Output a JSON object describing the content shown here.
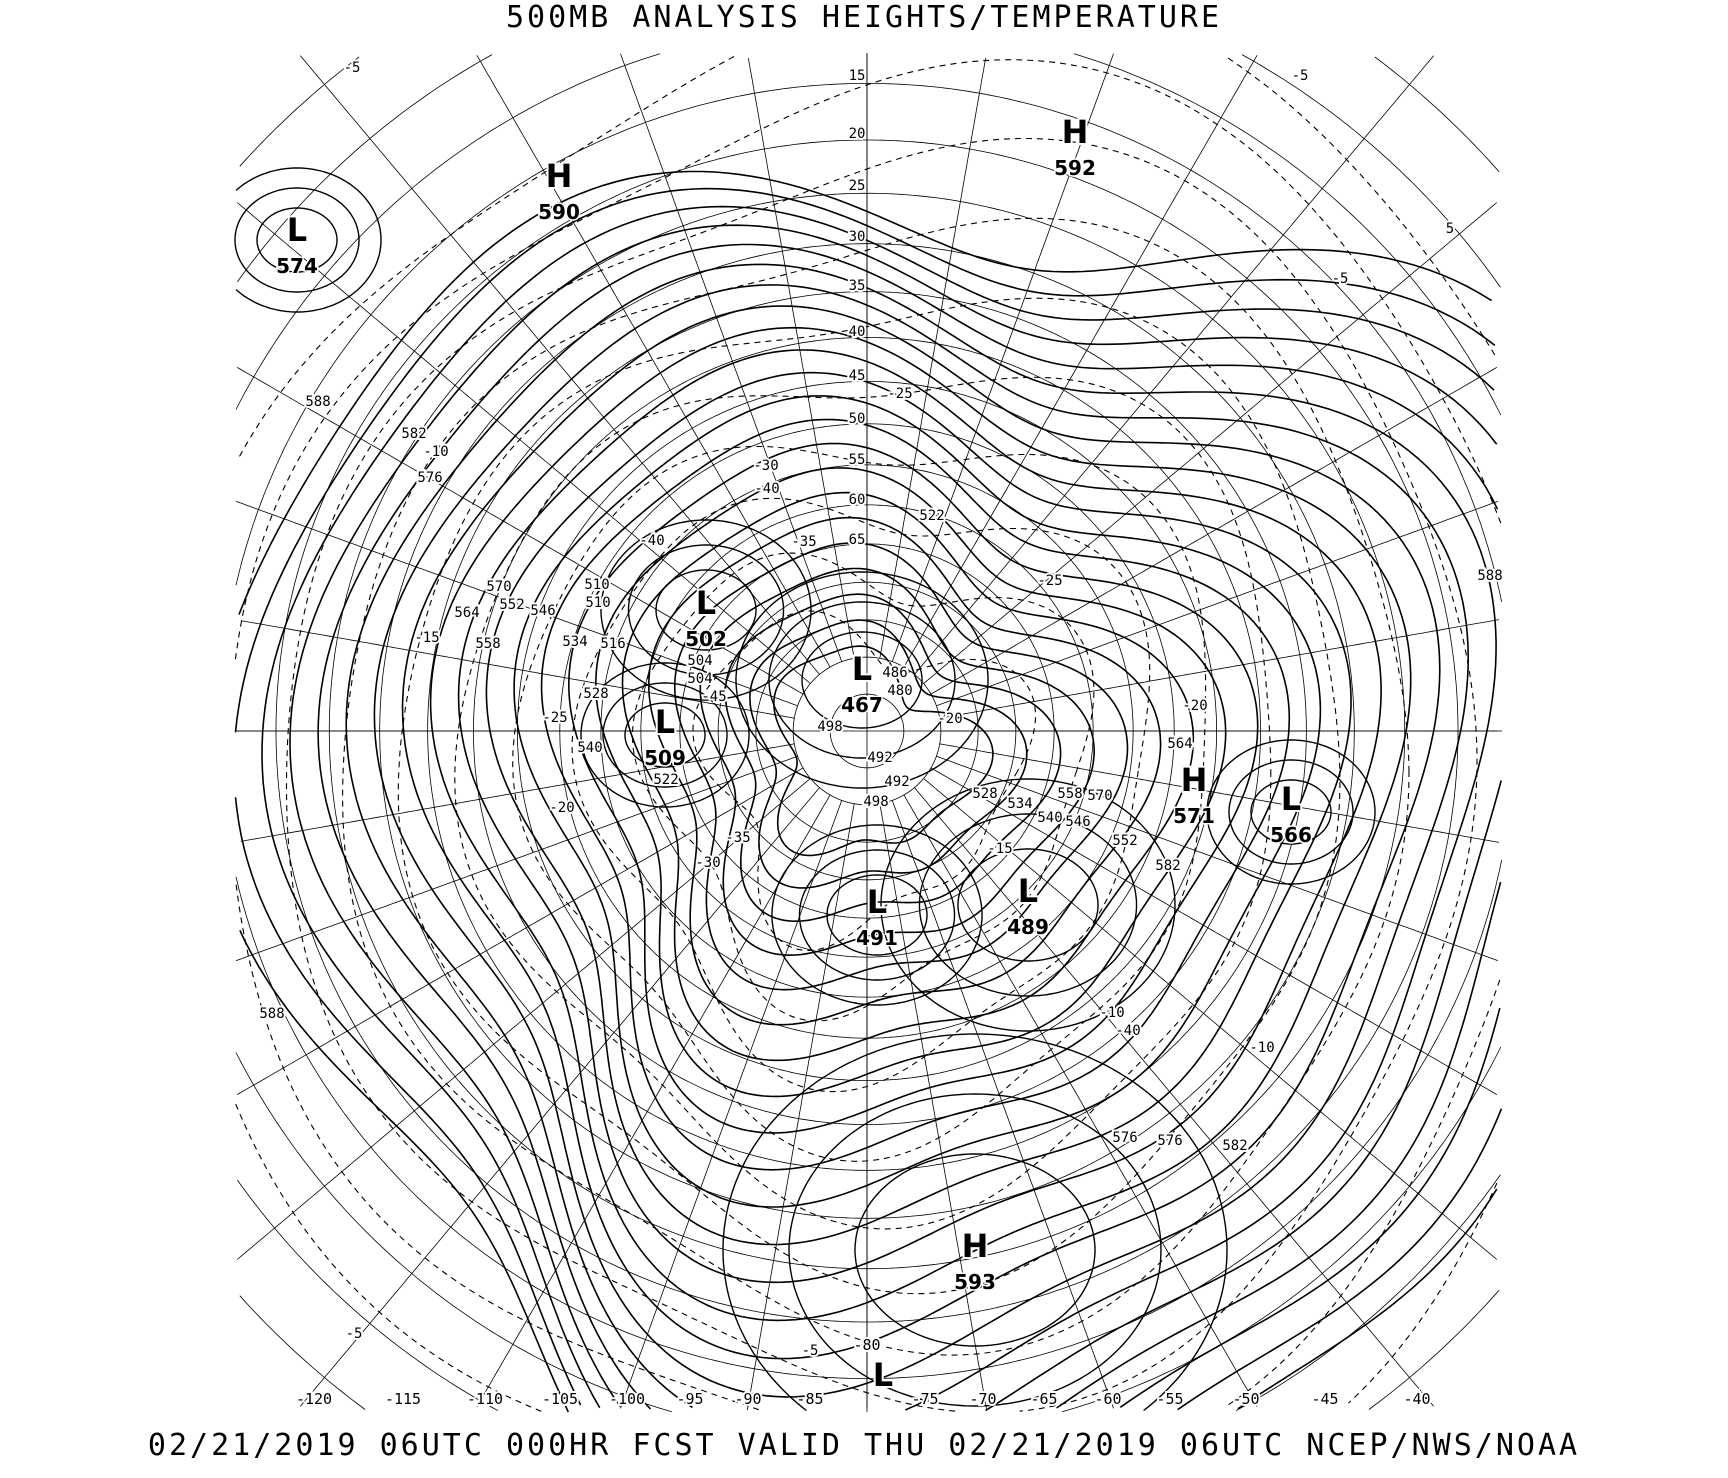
{
  "header": {
    "title": "500MB ANALYSIS  HEIGHTS/TEMPERATURE"
  },
  "footer": {
    "valid_text": "02/21/2019 06UTC 000HR FCST VALID THU 02/21/2019 06UTC  NCEP/NWS/NOAA"
  },
  "map": {
    "projection": "polar stereographic",
    "line_color": "#000000",
    "background_color": "#ffffff",
    "latitude_labels": [
      "15",
      "20",
      "25",
      "30",
      "35",
      "40",
      "45",
      "50",
      "55",
      "60",
      "65"
    ],
    "longitude_labels": [
      "-120",
      "-115",
      "-110",
      "-105",
      "-100",
      "-95",
      "-90",
      "-85",
      "-80",
      "-75",
      "-70",
      "-65",
      "-60",
      "-55",
      "-50",
      "-45",
      "-40"
    ],
    "pressure_centers": [
      {
        "type": "H",
        "value": "590"
      },
      {
        "type": "H",
        "value": "592"
      },
      {
        "type": "L",
        "value": "574"
      },
      {
        "type": "L",
        "value": "502"
      },
      {
        "type": "L",
        "value": "467"
      },
      {
        "type": "L",
        "value": "509"
      },
      {
        "type": "H",
        "value": "571"
      },
      {
        "type": "L",
        "value": "566"
      },
      {
        "type": "L",
        "value": "491"
      },
      {
        "type": "L",
        "value": "489"
      },
      {
        "type": "H",
        "value": "593"
      },
      {
        "type": "L",
        "value": ""
      }
    ],
    "contour_labels": [
      "588",
      "582",
      "576",
      "570",
      "564",
      "558",
      "552",
      "546",
      "540",
      "534",
      "528",
      "522",
      "516",
      "510",
      "504",
      "498",
      "492",
      "486",
      "480",
      "588",
      "576",
      "582",
      "570",
      "558",
      "552",
      "546",
      "540",
      "534",
      "528",
      "522",
      "510",
      "504",
      "498",
      "492",
      "588",
      "582",
      "576",
      "564"
    ],
    "temperature_labels": [
      "-5",
      "-5",
      "-5",
      "-10",
      "-15",
      "-20",
      "-25",
      "-30",
      "-35",
      "-40",
      "-45",
      "-40",
      "-35",
      "-30",
      "-25",
      "-20",
      "-15",
      "-10",
      "-5",
      "5",
      "-25",
      "-20",
      "-40",
      "-10",
      "-5"
    ]
  }
}
